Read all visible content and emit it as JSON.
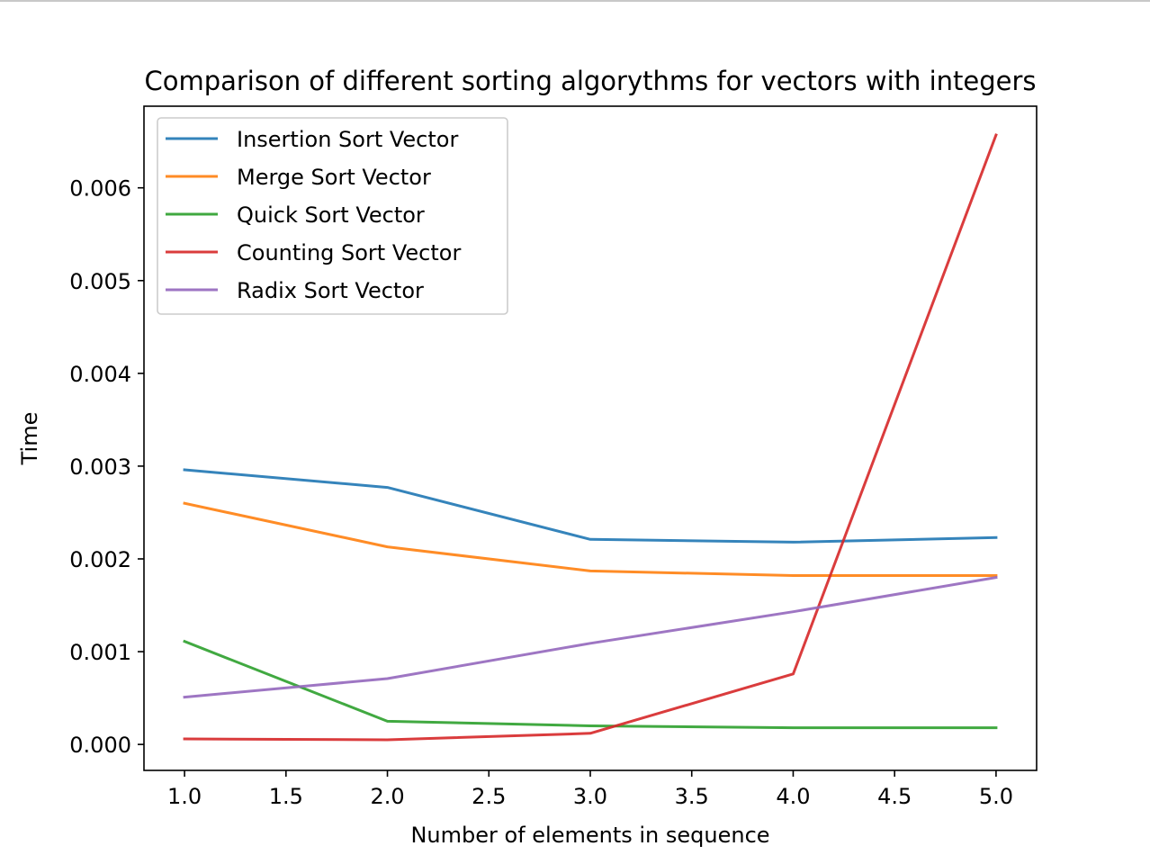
{
  "chart_data": {
    "type": "line",
    "title": "Comparison of different sorting algorythms for vectors with integers",
    "xlabel": "Number of elements in sequence",
    "ylabel": "Time",
    "xlim": [
      0.8,
      5.2
    ],
    "ylim": [
      -0.00028,
      0.00688
    ],
    "grid": false,
    "legend_position": "top-left",
    "x": [
      1.0,
      2.0,
      3.0,
      4.0,
      5.0
    ],
    "x_ticks": [
      {
        "value": 1.0,
        "label": "1.0"
      },
      {
        "value": 1.5,
        "label": "1.5"
      },
      {
        "value": 2.0,
        "label": "2.0"
      },
      {
        "value": 2.5,
        "label": "2.5"
      },
      {
        "value": 3.0,
        "label": "3.0"
      },
      {
        "value": 3.5,
        "label": "3.5"
      },
      {
        "value": 4.0,
        "label": "4.0"
      },
      {
        "value": 4.5,
        "label": "4.5"
      },
      {
        "value": 5.0,
        "label": "5.0"
      }
    ],
    "y_ticks": [
      {
        "value": 0.0,
        "label": "0.000"
      },
      {
        "value": 0.001,
        "label": "0.001"
      },
      {
        "value": 0.002,
        "label": "0.002"
      },
      {
        "value": 0.003,
        "label": "0.003"
      },
      {
        "value": 0.004,
        "label": "0.004"
      },
      {
        "value": 0.005,
        "label": "0.005"
      },
      {
        "value": 0.006,
        "label": "0.006"
      }
    ],
    "series": [
      {
        "name": "Insertion Sort Vector",
        "color": "#1f77b4",
        "values": [
          0.00296,
          0.00277,
          0.00221,
          0.00218,
          0.00223
        ]
      },
      {
        "name": "Merge Sort Vector",
        "color": "#ff7f0e",
        "values": [
          0.0026,
          0.00213,
          0.00187,
          0.00182,
          0.00182
        ]
      },
      {
        "name": "Quick Sort Vector",
        "color": "#2ca02c",
        "values": [
          0.00111,
          0.00025,
          0.0002,
          0.00018,
          0.00018
        ]
      },
      {
        "name": "Counting Sort Vector",
        "color": "#d62728",
        "values": [
          6e-05,
          5e-05,
          0.00012,
          0.00076,
          0.00657
        ]
      },
      {
        "name": "Radix Sort Vector",
        "color": "#9467bd",
        "values": [
          0.00051,
          0.00071,
          0.00109,
          0.00143,
          0.0018
        ]
      }
    ]
  }
}
